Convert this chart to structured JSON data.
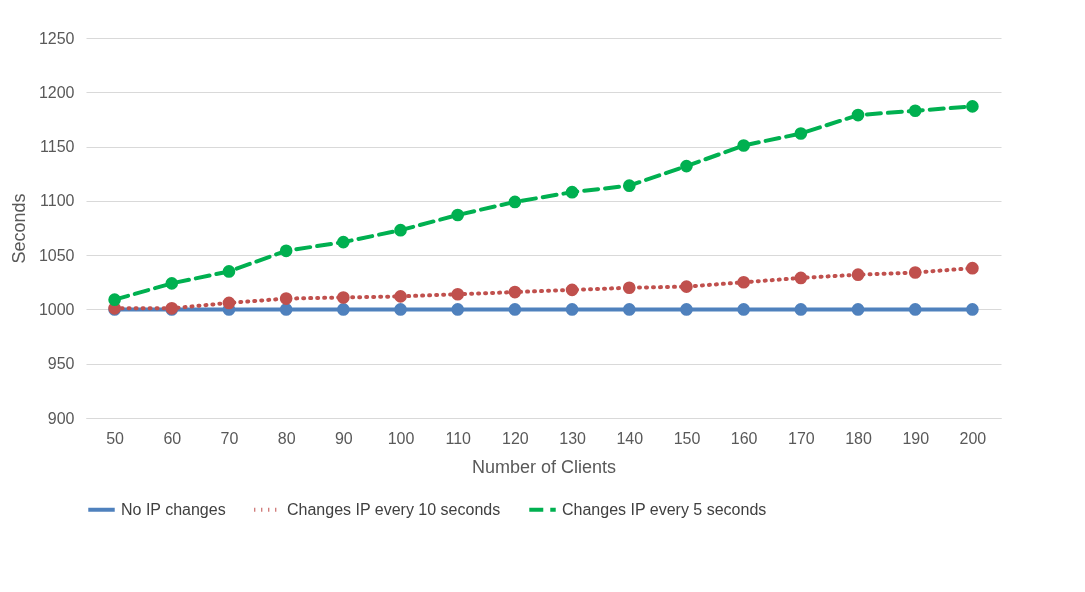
{
  "chart_data": {
    "type": "line",
    "xlabel": "Number of Clients",
    "ylabel": "Seconds",
    "categories": [
      "50",
      "60",
      "70",
      "80",
      "90",
      "100",
      "110",
      "120",
      "130",
      "140",
      "150",
      "160",
      "170",
      "180",
      "190",
      "200"
    ],
    "series": [
      {
        "name": "No IP changes",
        "color": "#4f81bd",
        "line_style": "solid",
        "values": [
          1000,
          1000,
          1000,
          1000,
          1000,
          1000,
          1000,
          1000,
          1000,
          1000,
          1000,
          1000,
          1000,
          1000,
          1000,
          1000
        ]
      },
      {
        "name": "Changes IP every 10 seconds",
        "color": "#c0504d",
        "line_style": "dotted",
        "values": [
          1001,
          1001,
          1006,
          1010,
          1011,
          1012,
          1014,
          1016,
          1018,
          1020,
          1021,
          1025,
          1029,
          1032,
          1034,
          1038
        ]
      },
      {
        "name": "Changes IP every 5 seconds",
        "color": "#00b050",
        "line_style": "dashed",
        "values": [
          1009,
          1024,
          1035,
          1054,
          1062,
          1073,
          1087,
          1099,
          1108,
          1114,
          1132,
          1151,
          1162,
          1179,
          1183,
          1187
        ]
      }
    ],
    "ylim": [
      900,
      1250
    ],
    "yticks": [
      900,
      950,
      1000,
      1050,
      1100,
      1150,
      1200,
      1250
    ],
    "grid": "y",
    "legend": "bottom",
    "marker": "circle"
  }
}
